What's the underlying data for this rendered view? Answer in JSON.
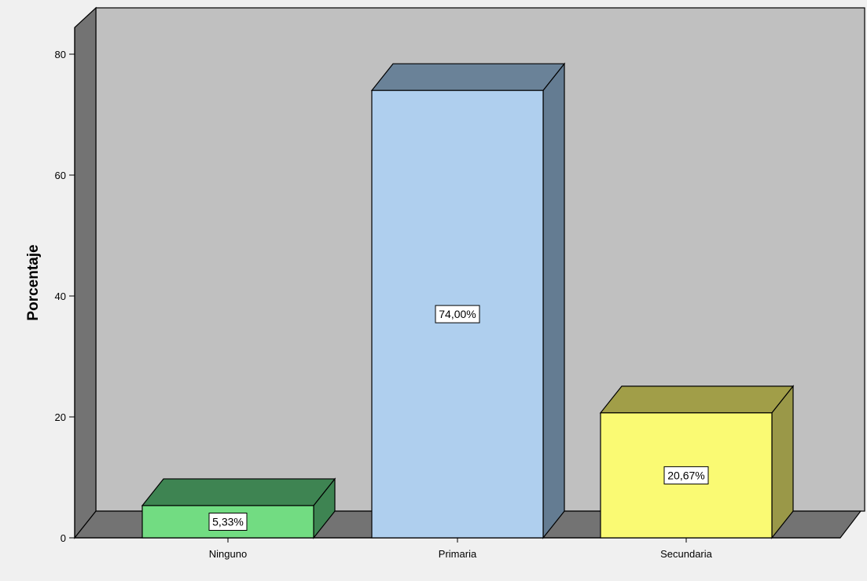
{
  "chart_data": {
    "type": "bar",
    "title": "",
    "xlabel": "",
    "ylabel": "Porcentaje",
    "ylim": [
      0,
      80
    ],
    "yticks": [
      0,
      20,
      40,
      60,
      80
    ],
    "grid": false,
    "legend": "none",
    "categories": [
      "Ninguno",
      "Primaria",
      "Secundaria"
    ],
    "values": [
      5.33,
      74.0,
      20.67
    ],
    "data_labels": [
      "5,33%",
      "74,00%",
      "20,67%"
    ],
    "colors": {
      "front": [
        "#72dc82",
        "#afcfee",
        "#fafa73"
      ],
      "side": [
        "#3e8452",
        "#647c92",
        "#9a9848"
      ],
      "top": [
        "#3e8452",
        "#6a8298",
        "#a19e48"
      ],
      "wall": "#c0c0c0",
      "wall_side": "#737373",
      "floor": "#737373",
      "background": "#f0f0f0"
    }
  }
}
